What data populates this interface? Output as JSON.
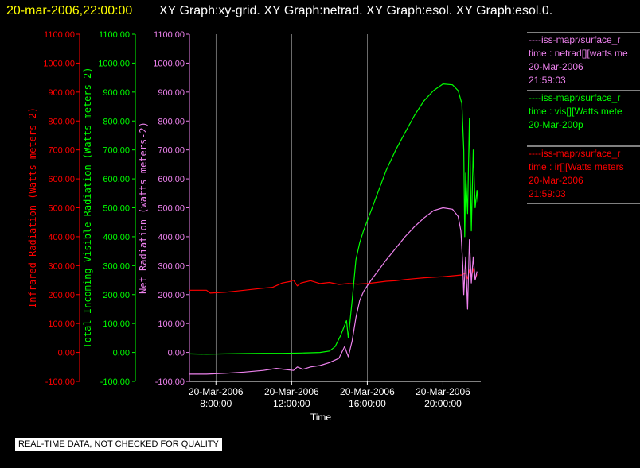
{
  "header": {
    "date": "20-mar-2006,22:00:00",
    "title": "XY Graph:xy-grid.  XY Graph:netrad.  XY Graph:esol.  XY Graph:esol.0."
  },
  "colors": {
    "background": "#000000",
    "header_date": "#ffff00",
    "header_title": "#ffffff",
    "infrared": "#ff0000",
    "visible": "#00ff00",
    "net": "#ee82ee",
    "axis": "#ffffff",
    "grid": "#ffffff"
  },
  "notice": "REAL-TIME DATA, NOT CHECKED FOR QUALITY",
  "legend": [
    {
      "line1": "----iss-mapr/surface_r",
      "line2": "time : netrad[][watts me",
      "line3": "20-Mar-2006",
      "line4": "21:59:03",
      "color": "#ee82ee"
    },
    {
      "line1": "----iss-mapr/surface_r",
      "line2": "time : vis[][Watts mete",
      "line3": "20-Mar-200p",
      "line4": "",
      "color": "#00ff00"
    },
    {
      "line1": "----iss-mapr/surface_r",
      "line2": "time : ir[][Watts meters",
      "line3": "20-Mar-2006",
      "line4": "21:59:03",
      "color": "#ff0000"
    }
  ],
  "chart_data": {
    "type": "line",
    "xlabel": "Time",
    "x_ticks": [
      {
        "line1": "20-Mar-2006",
        "line2": "8:00:00",
        "hour": 8
      },
      {
        "line1": "20-Mar-2006",
        "line2": "12:00:00",
        "hour": 12
      },
      {
        "line1": "20-Mar-2006",
        "line2": "16:00:00",
        "hour": 16
      },
      {
        "line1": "20-Mar-2006",
        "line2": "20:00:00",
        "hour": 20
      }
    ],
    "xlim_hours": [
      6.6,
      22.0
    ],
    "ylim": [
      -100,
      1100
    ],
    "y_ticks": [
      "-100.00",
      "0.00",
      "100.00",
      "200.00",
      "300.00",
      "400.00",
      "500.00",
      "600.00",
      "700.00",
      "800.00",
      "900.00",
      "1000.00",
      "1100.00"
    ],
    "axes": [
      {
        "label": "Infrared Radiation (Watts meters-2)",
        "color": "#ff0000"
      },
      {
        "label": "Total Incoming Visible Radiation (Watts meters-2)",
        "color": "#00ff00"
      },
      {
        "label": "Net Radiation (watts meters-2)",
        "color": "#ee82ee"
      }
    ],
    "grid": "vertical",
    "series": [
      {
        "key": "infrared",
        "color": "#ff0000",
        "points": [
          [
            6.6,
            215
          ],
          [
            7.5,
            215
          ],
          [
            7.7,
            205
          ],
          [
            8.5,
            208
          ],
          [
            9.5,
            215
          ],
          [
            10.5,
            222
          ],
          [
            11,
            225
          ],
          [
            11.5,
            240
          ],
          [
            11.9,
            245
          ],
          [
            12.1,
            250
          ],
          [
            12.3,
            230
          ],
          [
            12.5,
            240
          ],
          [
            13,
            248
          ],
          [
            13.5,
            238
          ],
          [
            14,
            242
          ],
          [
            14.5,
            235
          ],
          [
            15,
            238
          ],
          [
            15.5,
            236
          ],
          [
            16,
            238
          ],
          [
            16.5,
            242
          ],
          [
            17,
            246
          ],
          [
            17.5,
            248
          ],
          [
            18,
            252
          ],
          [
            18.5,
            255
          ],
          [
            19,
            258
          ],
          [
            19.5,
            260
          ],
          [
            20,
            262
          ],
          [
            20.5,
            265
          ],
          [
            21,
            268
          ],
          [
            21.2,
            275
          ],
          [
            21.3,
            255
          ],
          [
            21.4,
            285
          ],
          [
            21.5,
            260
          ],
          [
            21.6,
            290
          ],
          [
            21.7,
            255
          ],
          [
            21.8,
            270
          ]
        ]
      },
      {
        "key": "visible",
        "color": "#00ff00",
        "points": [
          [
            6.6,
            -5
          ],
          [
            7.5,
            -6
          ],
          [
            8.5,
            -5
          ],
          [
            9.5,
            -4
          ],
          [
            10.5,
            -3
          ],
          [
            11.5,
            -3
          ],
          [
            12.5,
            -2
          ],
          [
            13.5,
            0
          ],
          [
            14,
            5
          ],
          [
            14.3,
            20
          ],
          [
            14.6,
            60
          ],
          [
            14.9,
            110
          ],
          [
            15.0,
            50
          ],
          [
            15.2,
            180
          ],
          [
            15.4,
            320
          ],
          [
            15.6,
            380
          ],
          [
            15.8,
            420
          ],
          [
            16.2,
            490
          ],
          [
            16.6,
            560
          ],
          [
            17,
            630
          ],
          [
            17.5,
            700
          ],
          [
            18,
            760
          ],
          [
            18.5,
            820
          ],
          [
            19,
            870
          ],
          [
            19.5,
            905
          ],
          [
            20,
            928
          ],
          [
            20.5,
            925
          ],
          [
            20.8,
            905
          ],
          [
            21,
            860
          ],
          [
            21.1,
            700
          ],
          [
            21.15,
            400
          ],
          [
            21.2,
            620
          ],
          [
            21.3,
            480
          ],
          [
            21.4,
            810
          ],
          [
            21.5,
            420
          ],
          [
            21.6,
            700
          ],
          [
            21.7,
            500
          ],
          [
            21.8,
            560
          ],
          [
            21.85,
            520
          ]
        ]
      },
      {
        "key": "net",
        "color": "#ee82ee",
        "points": [
          [
            6.6,
            -75
          ],
          [
            7.5,
            -75
          ],
          [
            8.5,
            -72
          ],
          [
            9.5,
            -68
          ],
          [
            10.5,
            -62
          ],
          [
            11.2,
            -55
          ],
          [
            11.8,
            -60
          ],
          [
            12.1,
            -62
          ],
          [
            12.3,
            -50
          ],
          [
            12.6,
            -58
          ],
          [
            13,
            -50
          ],
          [
            13.5,
            -45
          ],
          [
            14,
            -35
          ],
          [
            14.5,
            -20
          ],
          [
            14.8,
            20
          ],
          [
            15.0,
            -15
          ],
          [
            15.2,
            40
          ],
          [
            15.4,
            120
          ],
          [
            15.6,
            180
          ],
          [
            15.8,
            210
          ],
          [
            16.2,
            250
          ],
          [
            16.6,
            285
          ],
          [
            17,
            320
          ],
          [
            17.5,
            360
          ],
          [
            18,
            400
          ],
          [
            18.5,
            435
          ],
          [
            19,
            465
          ],
          [
            19.5,
            490
          ],
          [
            20,
            500
          ],
          [
            20.5,
            495
          ],
          [
            20.8,
            470
          ],
          [
            20.95,
            420
          ],
          [
            21.05,
            300
          ],
          [
            21.1,
            200
          ],
          [
            21.2,
            330
          ],
          [
            21.3,
            150
          ],
          [
            21.4,
            390
          ],
          [
            21.5,
            240
          ],
          [
            21.6,
            330
          ],
          [
            21.7,
            250
          ],
          [
            21.8,
            280
          ]
        ]
      }
    ]
  }
}
